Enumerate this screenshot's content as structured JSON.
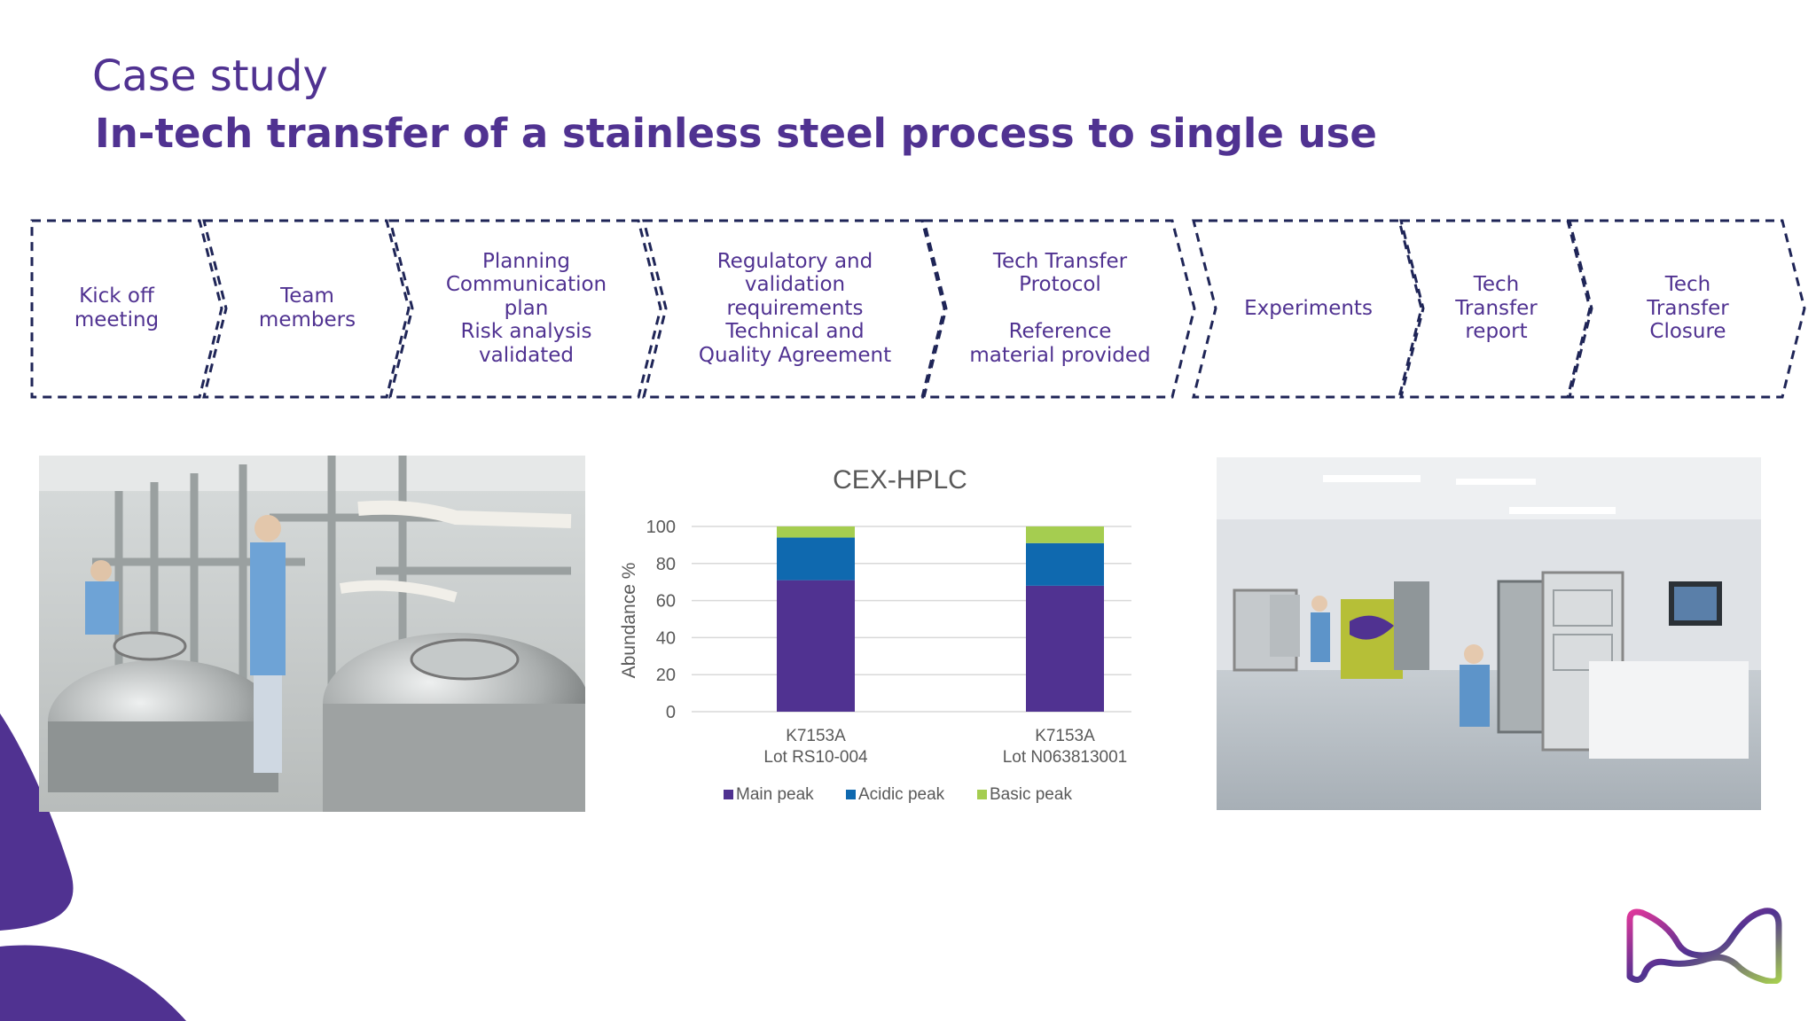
{
  "header": {
    "title": "Case study",
    "subtitle": "In-tech transfer of a stainless steel process to single use"
  },
  "process_steps": [
    {
      "label": "Kick off\nmeeting"
    },
    {
      "label": "Team\nmembers"
    },
    {
      "label": "Planning\nCommunication\nplan\nRisk analysis\nvalidated"
    },
    {
      "label": "Regulatory and\nvalidation\nrequirements\nTechnical and\nQuality Agreement"
    },
    {
      "label": "Tech  Transfer\nProtocol\n\nReference\nmaterial  provided"
    },
    {
      "label": "Experiments"
    },
    {
      "label": "Tech\nTransfer\nreport"
    },
    {
      "label": "Tech\nTransfer\nClosure"
    }
  ],
  "colors": {
    "brand_purple": "#503291",
    "dash_navy": "#1f2557",
    "main_peak": "#503291",
    "acidic_peak": "#0f69af",
    "basic_peak": "#a5cd50"
  },
  "photos": {
    "left": {
      "icon": "stainless-steel-bioreactor-photo"
    },
    "right": {
      "icon": "single-use-bioreactor-photo"
    }
  },
  "chart_data": {
    "type": "bar",
    "stacked": true,
    "title": "CEX-HPLC",
    "ylabel": "Abundance %",
    "xlabel": "",
    "ylim": [
      0,
      100
    ],
    "yticks": [
      0,
      20,
      40,
      60,
      80,
      100
    ],
    "grid": true,
    "legend_position": "bottom",
    "categories": [
      [
        "K7153A",
        "Lot RS10-004"
      ],
      [
        "K7153A",
        "Lot N063813001"
      ]
    ],
    "series": [
      {
        "name": "Main peak",
        "color": "#503291",
        "values": [
          71,
          68
        ]
      },
      {
        "name": "Acidic peak",
        "color": "#0f69af",
        "values": [
          23,
          23
        ]
      },
      {
        "name": "Basic peak",
        "color": "#a5cd50",
        "values": [
          6,
          9
        ]
      }
    ]
  }
}
